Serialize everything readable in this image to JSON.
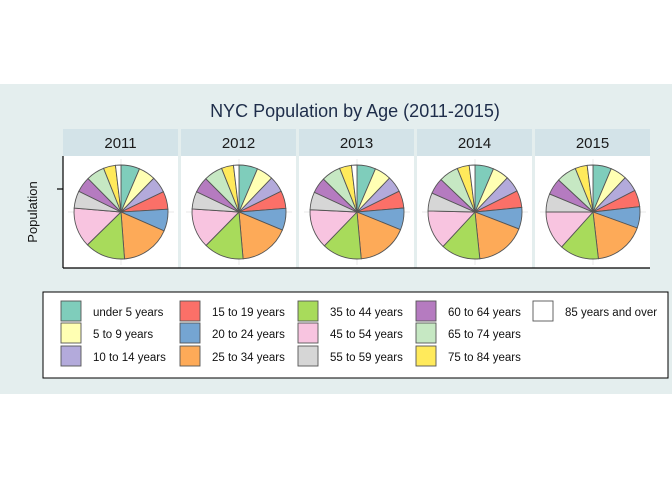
{
  "chart_data": {
    "type": "pie",
    "title": "NYC Population by Age (2011-2015)",
    "ylabel": "Population",
    "xlabel": "",
    "facets": [
      "2011",
      "2012",
      "2013",
      "2014",
      "2015"
    ],
    "categories": [
      "under 5 years",
      "5 to 9 years",
      "10 to 14 years",
      "15 to 19 years",
      "20 to 24 years",
      "25 to 34 years",
      "35 to 44 years",
      "45 to 54 years",
      "55 to 59 years",
      "60 to 64 years",
      "65 to 74 years",
      "75 to 84 years",
      "85 years and over"
    ],
    "colors": [
      "#7fcdbb",
      "#ffffb3",
      "#b3aadb",
      "#fb7068",
      "#75a5d2",
      "#fdaa58",
      "#a8db5b",
      "#f8c4e0",
      "#d6d6d6",
      "#b57bc0",
      "#c6e8c3",
      "#ffea5b",
      "#ffffff"
    ],
    "series": [
      {
        "name": "2011",
        "values": [
          6.5,
          5.9,
          5.7,
          6.2,
          7.6,
          17.4,
          14.0,
          13.8,
          6.0,
          5.4,
          6.4,
          4.2,
          1.9
        ]
      },
      {
        "name": "2012",
        "values": [
          6.5,
          5.8,
          5.6,
          6.1,
          7.6,
          17.5,
          13.9,
          13.8,
          6.1,
          5.5,
          6.5,
          4.2,
          1.9
        ]
      },
      {
        "name": "2013",
        "values": [
          6.5,
          5.8,
          5.6,
          6.0,
          7.6,
          17.6,
          13.8,
          13.7,
          6.2,
          5.5,
          6.7,
          4.2,
          1.9
        ]
      },
      {
        "name": "2014",
        "values": [
          6.5,
          5.7,
          5.6,
          5.9,
          7.5,
          17.7,
          13.7,
          13.6,
          6.3,
          5.6,
          6.8,
          4.2,
          2.0
        ]
      },
      {
        "name": "2015",
        "values": [
          6.4,
          5.7,
          5.5,
          5.8,
          7.4,
          17.8,
          13.6,
          13.5,
          6.3,
          5.7,
          7.0,
          4.2,
          2.0
        ]
      }
    ],
    "legend_position": "bottom",
    "grid": true
  }
}
